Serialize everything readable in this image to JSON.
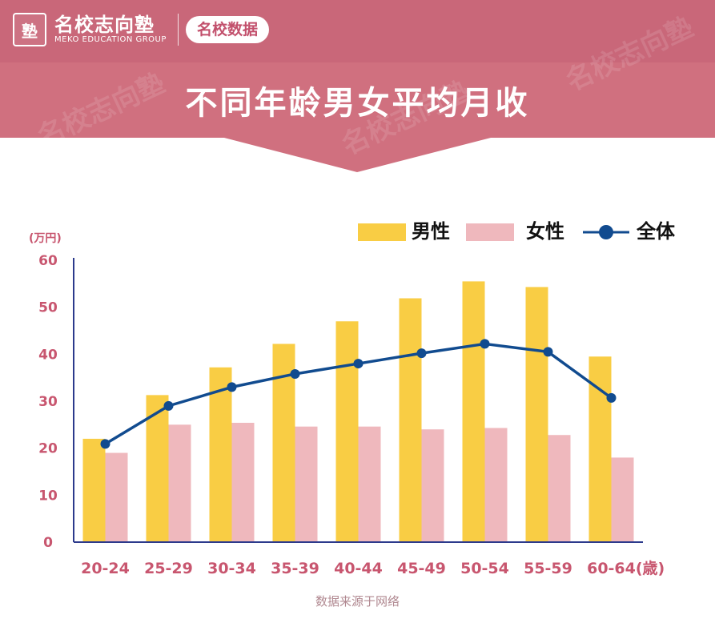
{
  "header": {
    "brand_name": "名校志向塾",
    "brand_en": "MEKO EDUCATION GROUP",
    "logo_glyph": "塾",
    "tag": "名校数据",
    "title": "不同年龄男女平均月收",
    "bg_color": "#d0707f"
  },
  "source_note": "数据来源于网络",
  "chart_data": {
    "type": "bar",
    "categories": [
      "20-24",
      "25-29",
      "30-34",
      "35-39",
      "40-44",
      "45-49",
      "50-54",
      "55-59",
      "60-64"
    ],
    "series": [
      {
        "name": "男性",
        "type": "bar",
        "color": "#f9cd44",
        "values": [
          22,
          31.3,
          37.2,
          42.2,
          47,
          51.9,
          55.5,
          54.3,
          39.5
        ]
      },
      {
        "name": "女性",
        "type": "bar",
        "color": "#efb8bd",
        "values": [
          19,
          25,
          25.4,
          24.6,
          24.6,
          24,
          24.3,
          22.8,
          18
        ]
      },
      {
        "name": "全体",
        "type": "line",
        "color": "#114b8f",
        "values": [
          20.9,
          29,
          33,
          35.8,
          38,
          40.2,
          42.2,
          40.5,
          30.7
        ]
      }
    ],
    "title": "",
    "ylabel": "(万円)",
    "xunit": "(歳)",
    "ylim": [
      0,
      60
    ],
    "yticks": [
      0,
      10,
      20,
      30,
      40,
      50,
      60
    ],
    "legend_position": "top-right",
    "grid": false,
    "axis_color": "#2c3a8c",
    "label_color": "#c8566f"
  }
}
